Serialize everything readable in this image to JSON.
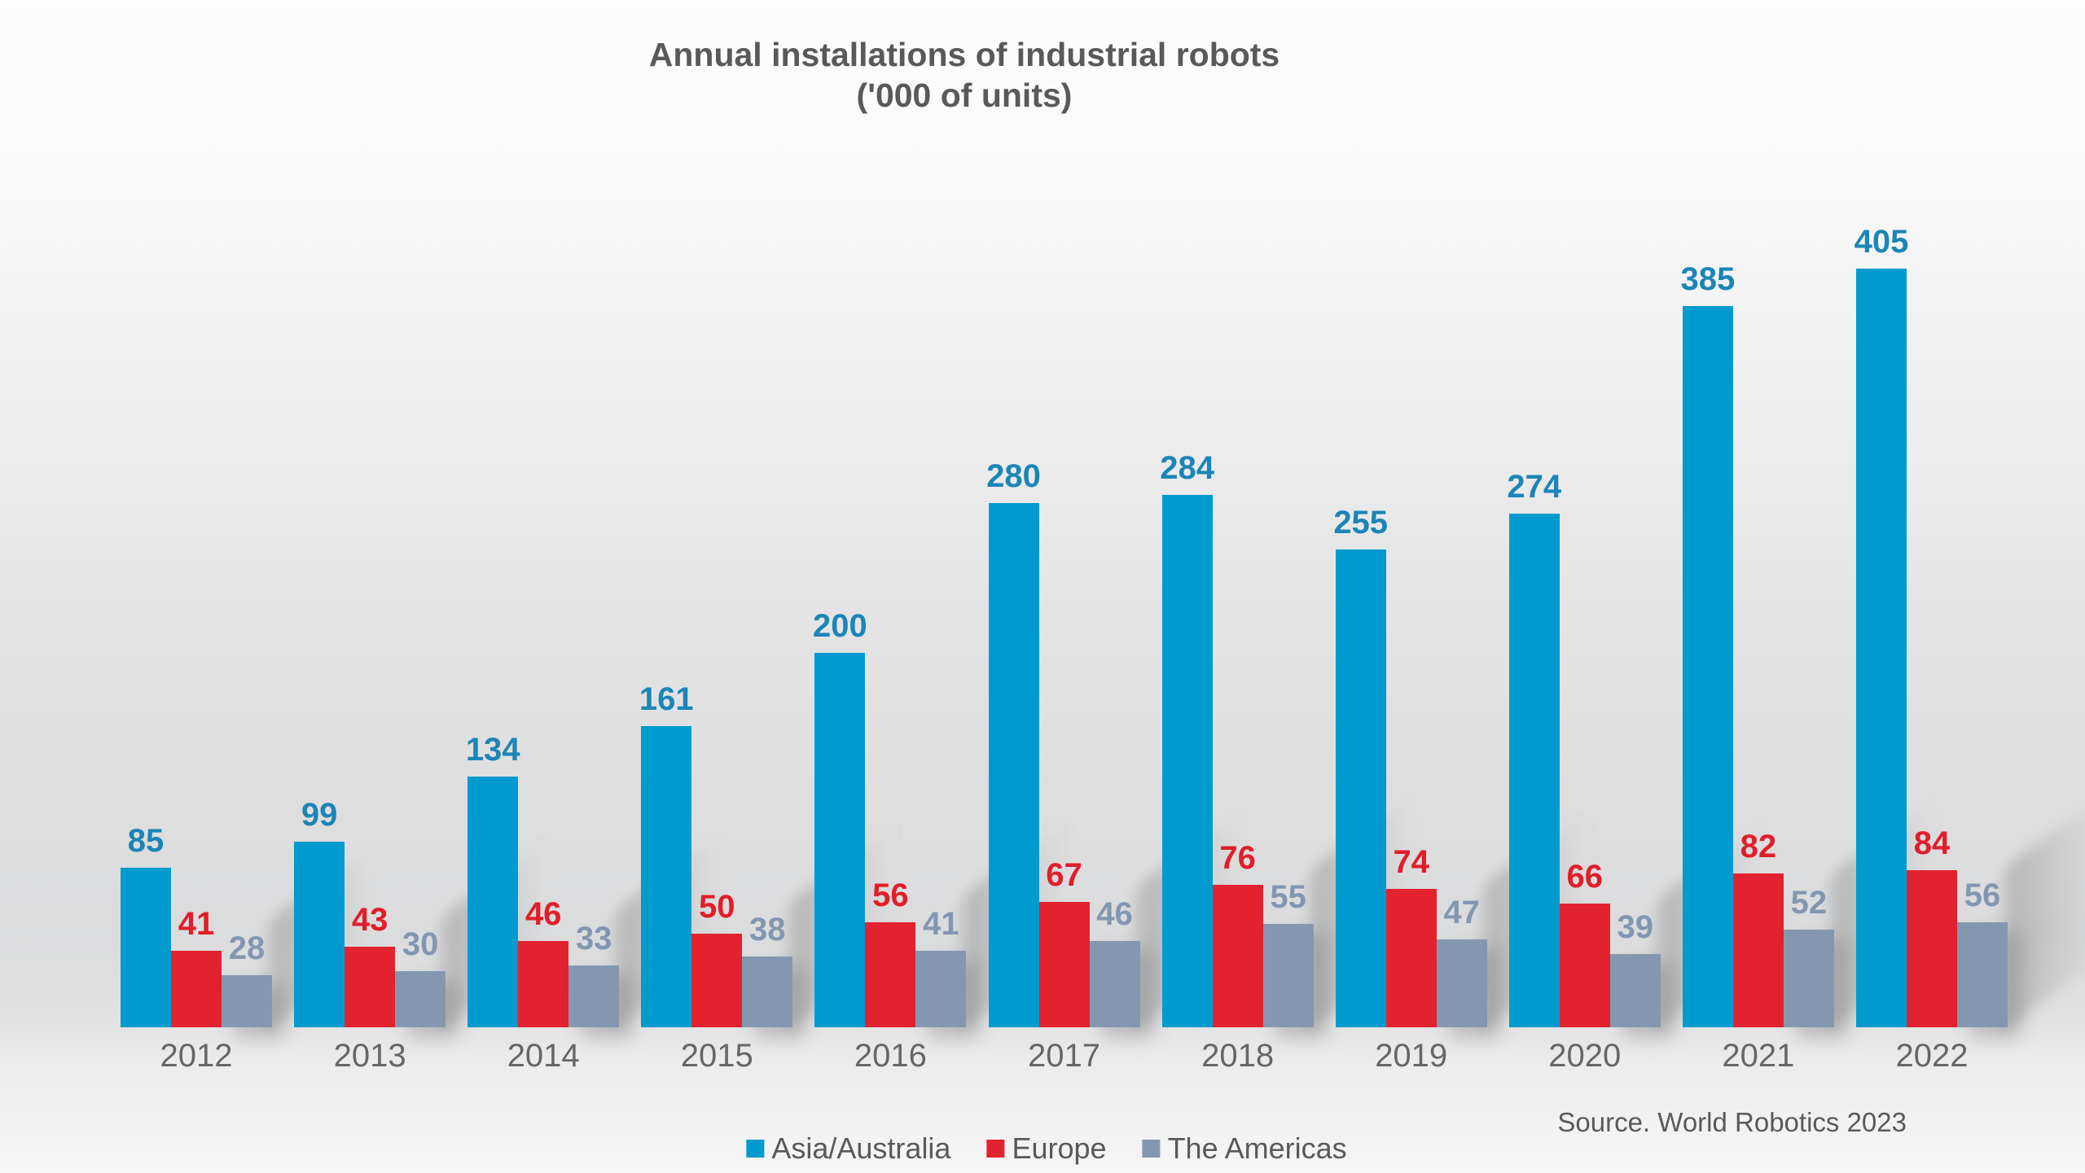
{
  "chart_data": {
    "type": "bar",
    "title": "Annual installations of industrial robots",
    "subtitle": "('000 of units)",
    "categories": [
      "2012",
      "2013",
      "2014",
      "2015",
      "2016",
      "2017",
      "2018",
      "2019",
      "2020",
      "2021",
      "2022"
    ],
    "series": [
      {
        "name": "Asia/Australia",
        "color": "#009BCE",
        "label_color": "#1B85B7",
        "values": [
          85,
          99,
          134,
          161,
          200,
          280,
          284,
          255,
          274,
          385,
          405
        ]
      },
      {
        "name": "Europe",
        "color": "#E3222F",
        "label_color": "#E01E2A",
        "values": [
          41,
          43,
          46,
          50,
          56,
          67,
          76,
          74,
          66,
          82,
          84
        ]
      },
      {
        "name": "The Americas",
        "color": "#8597B0",
        "label_color": "#8396B0",
        "values": [
          28,
          30,
          33,
          38,
          41,
          46,
          55,
          47,
          39,
          52,
          56
        ]
      }
    ],
    "ylim": [
      0,
      405
    ],
    "grid": false,
    "axis_lines": false,
    "value_labels": true,
    "legend_position": "bottom",
    "source": "Source. World Robotics 2023"
  },
  "text_color": "#595959"
}
